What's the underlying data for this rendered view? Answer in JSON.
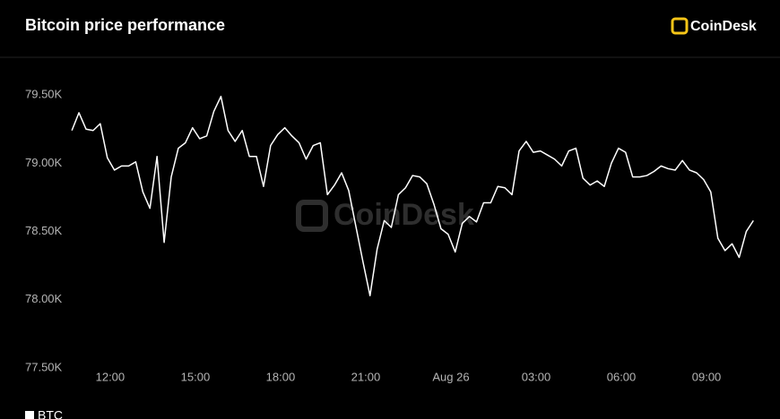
{
  "chart_data": {
    "type": "line",
    "title": "Bitcoin price performance",
    "logo_text": "CoinDesk",
    "x": [
      10.65,
      10.9,
      11.15,
      11.4,
      11.65,
      11.9,
      12.15,
      12.4,
      12.65,
      12.9,
      13.15,
      13.4,
      13.65,
      13.9,
      14.15,
      14.4,
      14.65,
      14.9,
      15.15,
      15.4,
      15.65,
      15.9,
      16.15,
      16.4,
      16.65,
      16.9,
      17.15,
      17.4,
      17.65,
      17.9,
      18.15,
      18.4,
      18.65,
      18.9,
      19.15,
      19.4,
      19.65,
      19.9,
      20.15,
      20.4,
      20.65,
      20.9,
      21.15,
      21.4,
      21.65,
      21.9,
      22.15,
      22.4,
      22.65,
      22.9,
      23.15,
      23.4,
      23.65,
      23.9,
      24.15,
      24.4,
      24.65,
      24.9,
      25.15,
      25.4,
      25.65,
      25.9,
      26.15,
      26.4,
      26.65,
      26.9,
      27.15,
      27.4,
      27.65,
      27.9,
      28.15,
      28.4,
      28.65,
      28.9,
      29.15,
      29.4,
      29.65,
      29.9,
      30.15,
      30.4,
      30.65,
      30.9,
      31.15,
      31.4,
      31.65,
      31.9,
      32.15,
      32.4,
      32.65,
      32.9,
      33.15,
      33.4,
      33.65,
      33.9,
      34.15,
      34.4,
      34.65
    ],
    "series": [
      {
        "name": "BTC",
        "color": "#ffffff",
        "values": [
          79240,
          79370,
          79250,
          79240,
          79290,
          79040,
          78950,
          78980,
          78980,
          79010,
          78790,
          78670,
          79050,
          78420,
          78900,
          79110,
          79150,
          79260,
          79180,
          79200,
          79380,
          79490,
          79240,
          79160,
          79240,
          79050,
          79050,
          78830,
          79130,
          79210,
          79260,
          79200,
          79150,
          79030,
          79130,
          79150,
          78770,
          78840,
          78930,
          78800,
          78540,
          78280,
          78030,
          78370,
          78580,
          78530,
          78770,
          78820,
          78910,
          78900,
          78850,
          78700,
          78520,
          78480,
          78350,
          78560,
          78610,
          78570,
          78710,
          78710,
          78830,
          78820,
          78770,
          79090,
          79160,
          79080,
          79090,
          79060,
          79030,
          78980,
          79090,
          79110,
          78890,
          78840,
          78870,
          78830,
          79000,
          79110,
          79080,
          78900,
          78900,
          78910,
          78940,
          78980,
          78960,
          78950,
          79020,
          78950,
          78930,
          78880,
          78790,
          78450,
          78360,
          78410,
          78310,
          78500,
          78580
        ]
      }
    ],
    "xlim": [
      10.33,
      34.83
    ],
    "ylim": [
      77500,
      79750
    ],
    "xticks": [
      {
        "value": 12,
        "label": "12:00"
      },
      {
        "value": 15,
        "label": "15:00"
      },
      {
        "value": 18,
        "label": "18:00"
      },
      {
        "value": 21,
        "label": "21:00"
      },
      {
        "value": 24,
        "label": "Aug 26"
      },
      {
        "value": 27,
        "label": "03:00"
      },
      {
        "value": 30,
        "label": "06:00"
      },
      {
        "value": 33,
        "label": "09:00"
      }
    ],
    "yticks": [
      {
        "value": 77500,
        "label": "77.50K"
      },
      {
        "value": 78000,
        "label": "78.00K"
      },
      {
        "value": 78500,
        "label": "78.50K"
      },
      {
        "value": 79000,
        "label": "79.00K"
      },
      {
        "value": 79500,
        "label": "79.50K"
      }
    ],
    "grid": false
  }
}
